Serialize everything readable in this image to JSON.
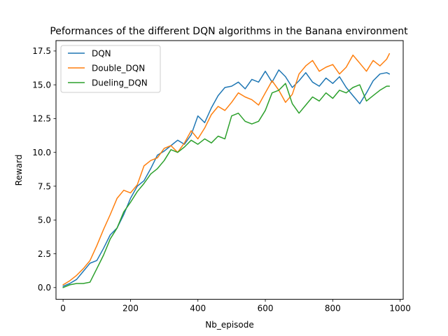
{
  "chart_data": {
    "type": "line",
    "title": "Peformances of the different DQN algorithms in the Banana environment",
    "xlabel": "Nb_episode",
    "ylabel": "Reward",
    "xlim": [
      -21,
      1009
    ],
    "ylim": [
      -0.87,
      18.27
    ],
    "xticks": [
      0,
      200,
      400,
      600,
      800,
      1000
    ],
    "yticks": [
      0.0,
      2.5,
      5.0,
      7.5,
      10.0,
      12.5,
      15.0,
      17.5
    ],
    "xtick_labels": [
      "0",
      "200",
      "400",
      "600",
      "800",
      "1000"
    ],
    "ytick_labels": [
      "0.0",
      "2.5",
      "5.0",
      "7.5",
      "10.0",
      "12.5",
      "15.0",
      "17.5"
    ],
    "legend_position": "top-left",
    "grid": false,
    "series": [
      {
        "name": "DQN",
        "color": "#1f77b4",
        "points": [
          [
            0,
            0.1
          ],
          [
            20,
            0.3
          ],
          [
            40,
            0.6
          ],
          [
            60,
            1.2
          ],
          [
            80,
            1.8
          ],
          [
            100,
            2.0
          ],
          [
            120,
            2.9
          ],
          [
            140,
            3.9
          ],
          [
            160,
            4.4
          ],
          [
            180,
            5.4
          ],
          [
            200,
            6.6
          ],
          [
            220,
            7.5
          ],
          [
            240,
            7.9
          ],
          [
            260,
            8.8
          ],
          [
            280,
            9.8
          ],
          [
            300,
            10.1
          ],
          [
            320,
            10.5
          ],
          [
            340,
            10.9
          ],
          [
            360,
            10.6
          ],
          [
            380,
            11.3
          ],
          [
            400,
            12.7
          ],
          [
            420,
            12.2
          ],
          [
            440,
            13.3
          ],
          [
            460,
            14.2
          ],
          [
            480,
            14.8
          ],
          [
            500,
            14.9
          ],
          [
            520,
            15.2
          ],
          [
            540,
            14.7
          ],
          [
            560,
            15.4
          ],
          [
            580,
            15.2
          ],
          [
            600,
            16.0
          ],
          [
            620,
            15.2
          ],
          [
            640,
            16.1
          ],
          [
            660,
            15.6
          ],
          [
            680,
            14.8
          ],
          [
            700,
            15.3
          ],
          [
            720,
            15.9
          ],
          [
            740,
            15.2
          ],
          [
            760,
            14.9
          ],
          [
            780,
            15.5
          ],
          [
            800,
            15.1
          ],
          [
            820,
            15.6
          ],
          [
            840,
            14.8
          ],
          [
            860,
            14.2
          ],
          [
            880,
            13.6
          ],
          [
            900,
            14.4
          ],
          [
            920,
            15.3
          ],
          [
            940,
            15.8
          ],
          [
            960,
            15.9
          ],
          [
            968,
            15.8
          ]
        ]
      },
      {
        "name": "Double_DQN",
        "color": "#ff7f0e",
        "points": [
          [
            0,
            0.2
          ],
          [
            20,
            0.5
          ],
          [
            40,
            0.9
          ],
          [
            60,
            1.4
          ],
          [
            80,
            2.0
          ],
          [
            100,
            3.1
          ],
          [
            120,
            4.3
          ],
          [
            140,
            5.4
          ],
          [
            160,
            6.6
          ],
          [
            180,
            7.2
          ],
          [
            200,
            7.0
          ],
          [
            220,
            7.6
          ],
          [
            240,
            9.0
          ],
          [
            260,
            9.4
          ],
          [
            280,
            9.6
          ],
          [
            300,
            10.3
          ],
          [
            320,
            10.5
          ],
          [
            340,
            10.0
          ],
          [
            360,
            10.7
          ],
          [
            380,
            11.6
          ],
          [
            400,
            11.0
          ],
          [
            420,
            11.8
          ],
          [
            440,
            12.8
          ],
          [
            460,
            13.4
          ],
          [
            480,
            13.1
          ],
          [
            500,
            13.7
          ],
          [
            520,
            14.4
          ],
          [
            540,
            14.1
          ],
          [
            560,
            13.9
          ],
          [
            580,
            13.5
          ],
          [
            600,
            14.4
          ],
          [
            620,
            15.3
          ],
          [
            640,
            14.6
          ],
          [
            660,
            13.7
          ],
          [
            680,
            14.3
          ],
          [
            700,
            15.8
          ],
          [
            720,
            16.4
          ],
          [
            740,
            16.8
          ],
          [
            760,
            16.0
          ],
          [
            780,
            16.3
          ],
          [
            800,
            16.5
          ],
          [
            820,
            15.8
          ],
          [
            840,
            16.3
          ],
          [
            860,
            17.2
          ],
          [
            880,
            16.6
          ],
          [
            900,
            16.0
          ],
          [
            920,
            16.8
          ],
          [
            940,
            16.4
          ],
          [
            960,
            16.9
          ],
          [
            968,
            17.3
          ]
        ]
      },
      {
        "name": "Dueling_DQN",
        "color": "#2ca02c",
        "points": [
          [
            0,
            0.0
          ],
          [
            20,
            0.2
          ],
          [
            40,
            0.3
          ],
          [
            60,
            0.3
          ],
          [
            80,
            0.4
          ],
          [
            100,
            1.4
          ],
          [
            120,
            2.4
          ],
          [
            140,
            3.6
          ],
          [
            160,
            4.4
          ],
          [
            180,
            5.6
          ],
          [
            200,
            6.3
          ],
          [
            220,
            7.1
          ],
          [
            240,
            7.7
          ],
          [
            260,
            8.4
          ],
          [
            280,
            8.8
          ],
          [
            300,
            9.4
          ],
          [
            320,
            10.2
          ],
          [
            340,
            10.0
          ],
          [
            360,
            10.4
          ],
          [
            380,
            10.9
          ],
          [
            400,
            10.6
          ],
          [
            420,
            11.0
          ],
          [
            440,
            10.7
          ],
          [
            460,
            11.2
          ],
          [
            480,
            11.0
          ],
          [
            500,
            12.7
          ],
          [
            520,
            12.9
          ],
          [
            540,
            12.3
          ],
          [
            560,
            12.1
          ],
          [
            580,
            12.3
          ],
          [
            600,
            13.1
          ],
          [
            620,
            14.4
          ],
          [
            640,
            14.6
          ],
          [
            660,
            15.1
          ],
          [
            680,
            13.6
          ],
          [
            700,
            12.9
          ],
          [
            720,
            13.5
          ],
          [
            740,
            14.1
          ],
          [
            760,
            13.8
          ],
          [
            780,
            14.4
          ],
          [
            800,
            14.0
          ],
          [
            820,
            14.6
          ],
          [
            840,
            14.4
          ],
          [
            860,
            14.8
          ],
          [
            880,
            15.0
          ],
          [
            900,
            13.8
          ],
          [
            920,
            14.2
          ],
          [
            940,
            14.6
          ],
          [
            960,
            14.9
          ],
          [
            968,
            14.9
          ]
        ]
      }
    ]
  }
}
